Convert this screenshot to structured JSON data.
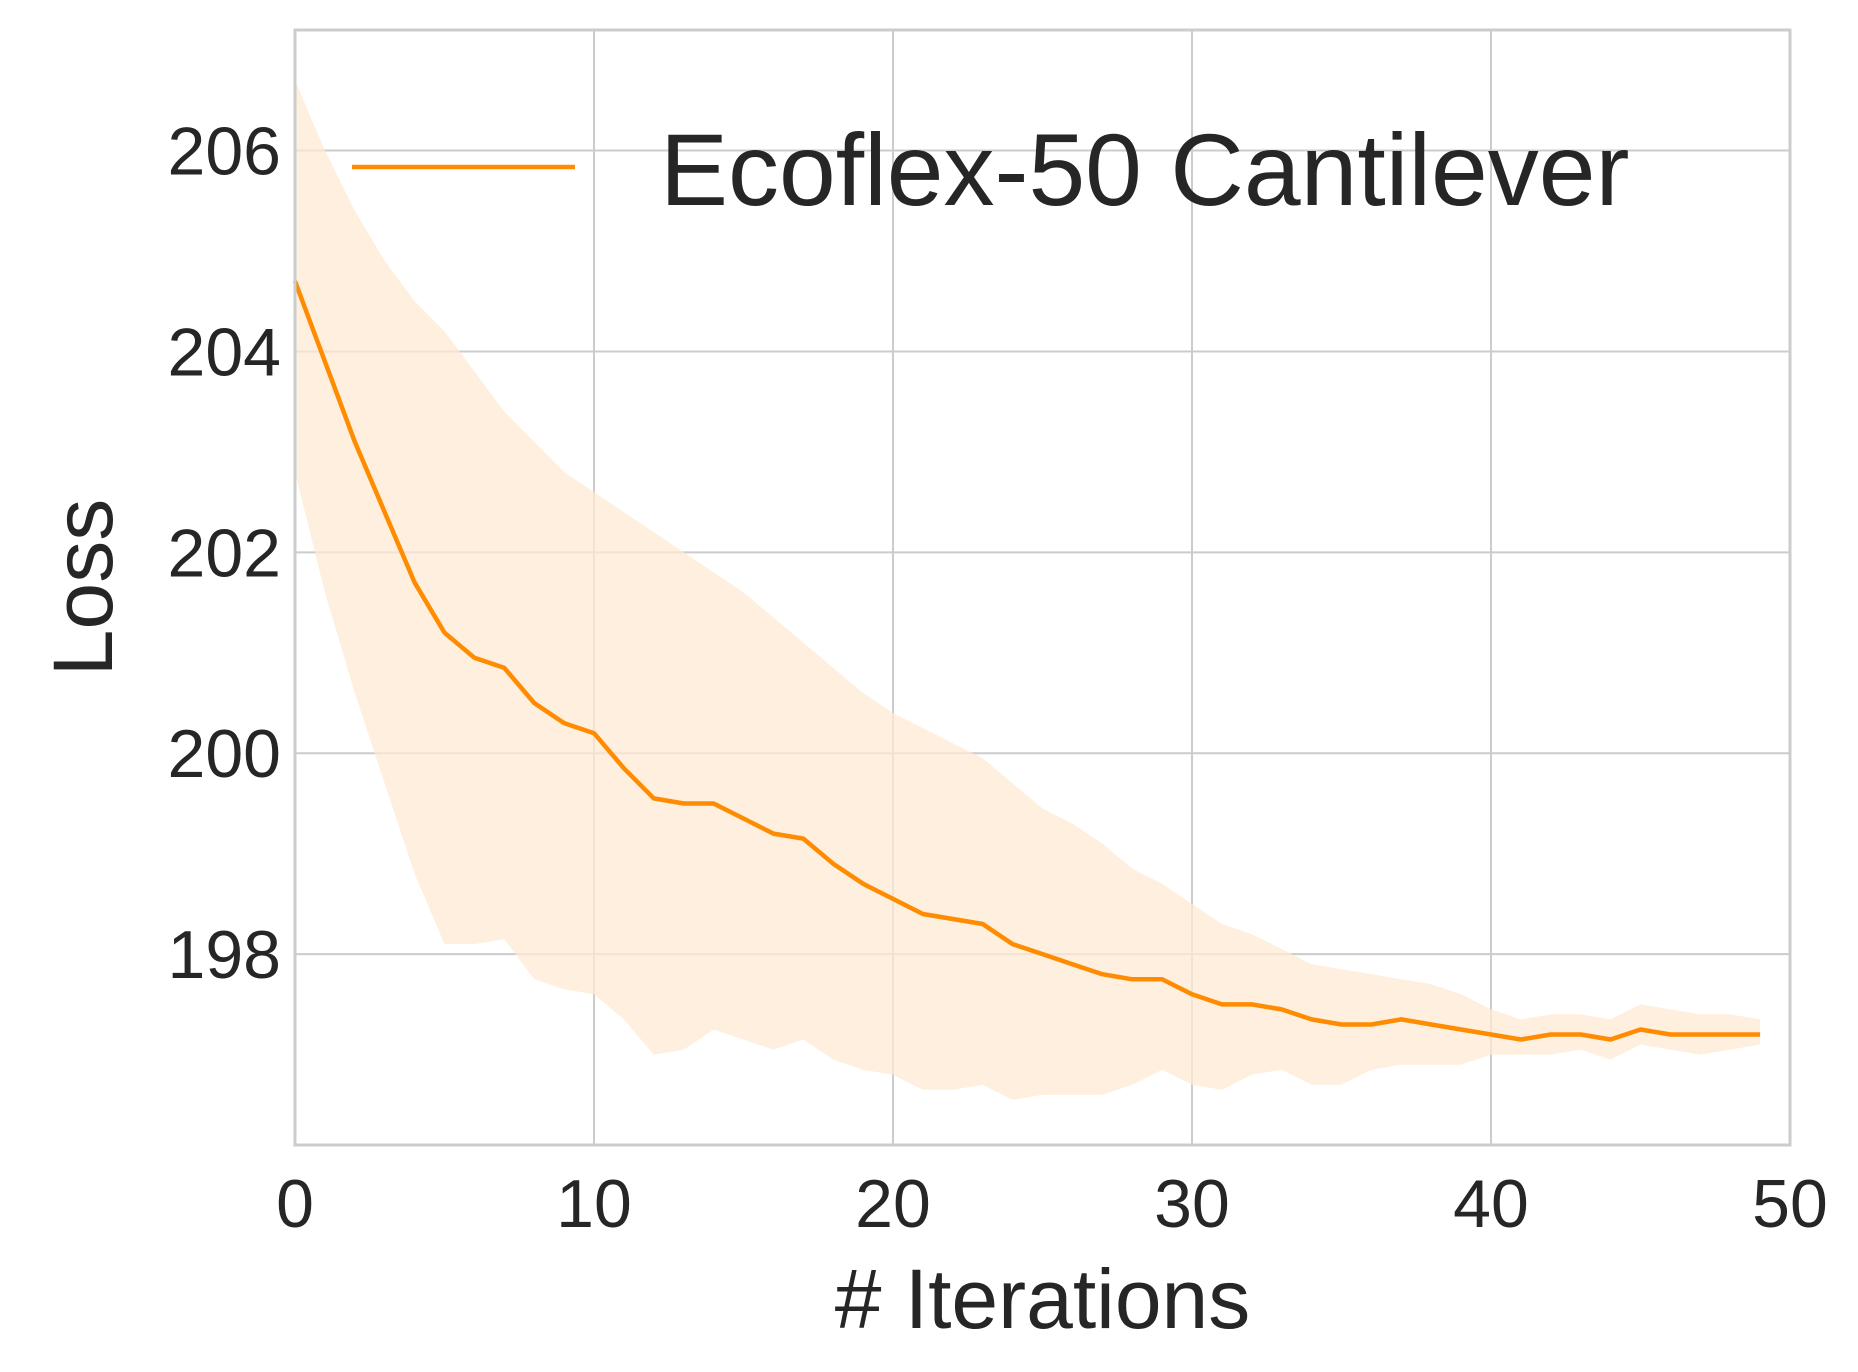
{
  "chart_data": {
    "type": "line",
    "title": "",
    "xlabel": "# Iterations",
    "ylabel": "Loss",
    "xlim": [
      0,
      50
    ],
    "ylim": [
      196.1,
      207.2
    ],
    "xticks": [
      0,
      10,
      20,
      30,
      40,
      50
    ],
    "yticks": [
      198,
      200,
      202,
      204,
      206
    ],
    "grid": true,
    "legend_position": "top-right",
    "colors": {
      "line": "#ff8c00",
      "band": "#fde9d3",
      "grid": "#cccccc",
      "frame": "#cccccc",
      "text": "#262626"
    },
    "series": [
      {
        "name": "Ecoflex-50 Cantilever",
        "x": [
          0,
          1,
          2,
          3,
          4,
          5,
          6,
          7,
          8,
          9,
          10,
          11,
          12,
          13,
          14,
          15,
          16,
          17,
          18,
          19,
          20,
          21,
          22,
          23,
          24,
          25,
          26,
          27,
          28,
          29,
          30,
          31,
          32,
          33,
          34,
          35,
          36,
          37,
          38,
          39,
          40,
          41,
          42,
          43,
          44,
          45,
          46,
          47,
          48,
          49
        ],
        "y": [
          204.7,
          203.9,
          203.1,
          202.4,
          201.7,
          201.2,
          200.95,
          200.85,
          200.5,
          200.3,
          200.2,
          199.85,
          199.55,
          199.5,
          199.5,
          199.35,
          199.2,
          199.15,
          198.9,
          198.7,
          198.55,
          198.4,
          198.35,
          198.3,
          198.1,
          198.0,
          197.9,
          197.8,
          197.75,
          197.75,
          197.6,
          197.5,
          197.5,
          197.45,
          197.35,
          197.3,
          197.3,
          197.35,
          197.3,
          197.25,
          197.2,
          197.15,
          197.2,
          197.2,
          197.15,
          197.25,
          197.2,
          197.2,
          197.2,
          197.2
        ],
        "lower": [
          202.8,
          201.6,
          200.6,
          199.7,
          198.8,
          198.1,
          198.1,
          198.15,
          197.75,
          197.65,
          197.6,
          197.35,
          197.0,
          197.05,
          197.25,
          197.15,
          197.05,
          197.15,
          196.95,
          196.85,
          196.8,
          196.65,
          196.65,
          196.7,
          196.55,
          196.6,
          196.6,
          196.6,
          196.7,
          196.85,
          196.7,
          196.65,
          196.8,
          196.85,
          196.7,
          196.7,
          196.85,
          196.9,
          196.9,
          196.9,
          197.0,
          197.0,
          197.0,
          197.05,
          196.95,
          197.1,
          197.05,
          197.0,
          197.05,
          197.1
        ],
        "upper": [
          206.7,
          206.0,
          205.4,
          204.9,
          204.5,
          204.2,
          203.8,
          203.4,
          203.1,
          202.8,
          202.6,
          202.4,
          202.2,
          202.0,
          201.8,
          201.6,
          201.35,
          201.1,
          200.85,
          200.6,
          200.4,
          200.25,
          200.1,
          199.95,
          199.7,
          199.45,
          199.3,
          199.1,
          198.85,
          198.7,
          198.5,
          198.3,
          198.2,
          198.05,
          197.9,
          197.85,
          197.8,
          197.75,
          197.7,
          197.6,
          197.45,
          197.35,
          197.4,
          197.4,
          197.35,
          197.5,
          197.45,
          197.4,
          197.4,
          197.35
        ]
      }
    ]
  }
}
